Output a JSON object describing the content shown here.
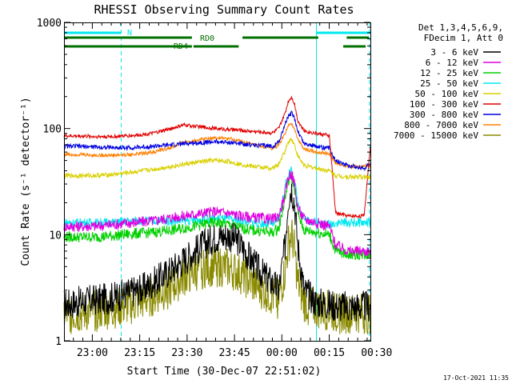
{
  "chart_data": {
    "type": "line",
    "title": "RHESSI Observing Summary Count Rates",
    "xlabel": "Start Time (30-Dec-07 22:51:02)",
    "ylabel": "Count Rate (s⁻¹ detector⁻¹)",
    "y_scale": "log",
    "ylim": [
      1,
      1000
    ],
    "xlim": [
      0,
      97
    ],
    "x_units": "minutes after 22:51:02",
    "x_ticks": [
      {
        "x": 8.97,
        "label": "23:00"
      },
      {
        "x": 23.97,
        "label": "23:15"
      },
      {
        "x": 38.97,
        "label": "23:30"
      },
      {
        "x": 53.97,
        "label": "23:45"
      },
      {
        "x": 68.97,
        "label": "00:00"
      },
      {
        "x": 83.97,
        "label": "00:15"
      },
      {
        "x": 98.97,
        "label": "00:30"
      }
    ],
    "y_ticks": [
      {
        "y": 1,
        "label": "1"
      },
      {
        "y": 10,
        "label": "10"
      },
      {
        "y": 100,
        "label": "100"
      },
      {
        "y": 1000,
        "label": "1000"
      }
    ],
    "legend_header": [
      "Det 1,3,4,5,6,9,",
      "FDecim 1, Att 0"
    ],
    "legend_position": "right",
    "series": [
      {
        "name": "3 - 6 keV",
        "color": "#000000",
        "x": [
          0,
          4,
          8,
          14,
          20,
          26,
          32,
          38,
          44,
          48,
          52,
          55,
          58,
          62,
          66,
          68,
          70,
          71,
          72,
          73,
          74,
          76,
          80,
          84,
          88,
          90,
          92,
          95,
          97
        ],
        "y": [
          2.2,
          2.3,
          2.4,
          2.5,
          2.8,
          3.2,
          4.2,
          5.8,
          8.0,
          9.5,
          9.8,
          8.8,
          6.5,
          4.5,
          3.5,
          3.0,
          8.0,
          22.0,
          28.0,
          20.0,
          8.0,
          3.0,
          2.3,
          2.2,
          2.1,
          2.1,
          2.1,
          2.1,
          2.1
        ]
      },
      {
        "name": "6 - 12 keV",
        "color": "#e000e0",
        "x": [
          0,
          5,
          10,
          16,
          22,
          28,
          34,
          38,
          44,
          48,
          52,
          56,
          60,
          66,
          68,
          70,
          71,
          72,
          73,
          74,
          76,
          80,
          84,
          86,
          90,
          95,
          97
        ],
        "y": [
          12,
          12,
          12,
          12.5,
          13,
          13.5,
          14.5,
          15,
          16,
          16.5,
          16,
          15,
          14.5,
          14,
          15,
          24,
          35,
          38,
          30,
          18,
          14,
          13,
          12,
          8,
          7,
          7,
          7
        ]
      },
      {
        "name": "12 - 25 keV",
        "color": "#00d000",
        "x": [
          0,
          5,
          10,
          16,
          22,
          28,
          34,
          38,
          44,
          48,
          52,
          56,
          60,
          66,
          68,
          70,
          71,
          72,
          73,
          74,
          76,
          80,
          84,
          86,
          90,
          95,
          97
        ],
        "y": [
          9.5,
          9.5,
          9.5,
          9.8,
          10.2,
          10.5,
          11,
          11.5,
          12.5,
          13,
          12.5,
          11.5,
          11,
          10.5,
          11.5,
          22,
          32,
          35,
          27,
          16,
          11,
          10.5,
          10,
          7,
          6.5,
          6.5,
          6.5
        ]
      },
      {
        "name": "25 - 50 keV",
        "color": "#00e8f0",
        "x": [
          0,
          5,
          10,
          16,
          22,
          28,
          34,
          38,
          44,
          48,
          52,
          56,
          60,
          66,
          68,
          70,
          71,
          72,
          73,
          74,
          76,
          80,
          84,
          86,
          90,
          95,
          97
        ],
        "y": [
          13,
          13,
          13,
          13,
          13.5,
          13.5,
          13.5,
          13.5,
          14,
          14.2,
          14,
          13.5,
          13,
          12.5,
          14,
          28,
          38,
          40,
          32,
          20,
          14,
          13,
          12.5,
          13,
          13,
          13,
          13
        ]
      },
      {
        "name": "50 - 100 keV",
        "color": "#d8d000",
        "x": [
          0,
          5,
          10,
          16,
          22,
          28,
          34,
          38,
          44,
          48,
          52,
          56,
          60,
          66,
          68,
          70,
          71,
          72,
          73,
          74,
          76,
          80,
          84,
          86,
          90,
          95,
          97
        ],
        "y": [
          36,
          36,
          36,
          37,
          39,
          41,
          44,
          46,
          49,
          50,
          49,
          46,
          44,
          42,
          46,
          62,
          75,
          80,
          70,
          55,
          45,
          42,
          40,
          36,
          35,
          35,
          35
        ]
      },
      {
        "name": "100 - 300 keV",
        "color": "#e00000",
        "x": [
          0,
          5,
          10,
          16,
          22,
          28,
          34,
          38,
          44,
          48,
          52,
          56,
          60,
          66,
          68,
          70,
          71,
          72,
          73,
          74,
          76,
          80,
          84,
          86,
          90,
          95,
          97
        ],
        "y": [
          85,
          85,
          84,
          84,
          86,
          90,
          100,
          108,
          103,
          100,
          98,
          96,
          94,
          91,
          100,
          140,
          180,
          200,
          170,
          120,
          95,
          90,
          86,
          16,
          15,
          15,
          70
        ]
      },
      {
        "name": "300 - 800 keV",
        "color": "#0000e0",
        "x": [
          0,
          5,
          10,
          16,
          22,
          28,
          34,
          38,
          44,
          48,
          52,
          56,
          60,
          66,
          68,
          70,
          71,
          72,
          73,
          74,
          76,
          80,
          84,
          86,
          90,
          95,
          97
        ],
        "y": [
          68,
          68,
          67,
          66,
          66,
          68,
          70,
          72,
          74,
          75,
          74,
          72,
          70,
          68,
          75,
          110,
          130,
          140,
          125,
          95,
          72,
          68,
          65,
          50,
          45,
          42,
          48
        ]
      },
      {
        "name": "800 - 7000 keV",
        "color": "#ff8000",
        "x": [
          0,
          5,
          10,
          16,
          22,
          28,
          34,
          38,
          44,
          48,
          52,
          56,
          60,
          66,
          68,
          70,
          71,
          72,
          73,
          74,
          76,
          80,
          84,
          86,
          90,
          95,
          97
        ],
        "y": [
          57,
          57,
          56,
          56,
          57,
          60,
          66,
          74,
          80,
          82,
          80,
          76,
          70,
          65,
          70,
          90,
          105,
          110,
          100,
          80,
          64,
          60,
          58,
          47,
          44,
          44,
          45
        ]
      },
      {
        "name": "7000 - 15000 keV",
        "color": "#8a8a00",
        "x": [
          0,
          5,
          10,
          16,
          22,
          28,
          34,
          38,
          44,
          48,
          52,
          56,
          60,
          66,
          68,
          70,
          71,
          72,
          73,
          74,
          76,
          80,
          84,
          86,
          90,
          95,
          97
        ],
        "y": [
          1.8,
          1.8,
          1.9,
          2.0,
          2.2,
          2.6,
          3.2,
          4.0,
          4.8,
          5.0,
          4.8,
          4.2,
          3.4,
          2.6,
          2.5,
          4.5,
          8.0,
          10.0,
          7.0,
          3.5,
          2.3,
          2.0,
          1.9,
          1.8,
          1.8,
          1.8,
          1.8
        ]
      }
    ],
    "annotations": [
      {
        "text": "N",
        "color": "#00e8f0"
      },
      {
        "text": "RD0",
        "color": "#007000"
      },
      {
        "text": "RD4",
        "color": "#007000"
      }
    ],
    "status_bars": {
      "night": {
        "color": "#00e8f0",
        "intervals": [
          [
            0,
            18
          ],
          [
            80,
            97
          ]
        ]
      },
      "rd0": {
        "color": "#007000",
        "intervals": [
          [
            0,
            40.5
          ],
          [
            56.5,
            80.5
          ],
          [
            89.5,
            96.5
          ]
        ]
      },
      "rd4": {
        "color": "#007000",
        "intervals": [
          [
            0,
            40.5
          ],
          [
            41,
            55.3
          ],
          [
            88.4,
            95.5
          ]
        ]
      }
    },
    "vertical_markers": [
      {
        "x": 18.1,
        "color": "#00e8f0",
        "style": "dashed"
      },
      {
        "x": 79.9,
        "color": "#00e8f0",
        "style": "solid"
      },
      {
        "x": 96.7,
        "color": "#00e8f0",
        "style": "dashed"
      }
    ]
  },
  "footer": {
    "timestamp": "17-Oct-2021 11:35"
  }
}
